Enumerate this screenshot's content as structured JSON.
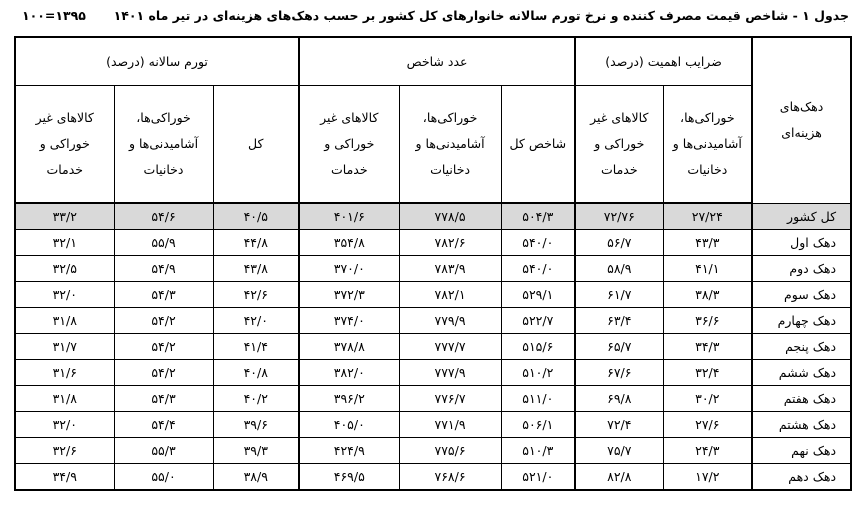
{
  "title": "جدول ۱ - شاخص قیمت مصرف کننده و نرخ تورم سالانه خانوارهای کل کشور بر حسب دهک‌های هزینه‌ای در تیر ماه ۱۴۰۱",
  "base_year": "۱۰۰=۱۳۹۵",
  "headers": {
    "row_label": "دهک‌های هزینه‌ای",
    "groups": [
      "ضرایب اهمیت (درصد)",
      "عدد شاخص",
      "تورم سالانه (درصد)"
    ],
    "sub": [
      "خوراکی‌ها، آشامیدنی‌ها و دخانیات",
      "کالاهای غیر خوراکی و خدمات",
      "شاخص کل",
      "خوراکی‌ها، آشامیدنی‌ها و دخانیات",
      "کالاهای غیر خوراکی و خدمات",
      "کل",
      "خوراکی‌ها، آشامیدنی‌ها و دخانیات",
      "کالاهای غیر خوراکی و خدمات"
    ]
  },
  "rows": [
    {
      "label": "کل کشور",
      "cells": [
        "۲۷/۲۴",
        "۷۲/۷۶",
        "۵۰۴/۳",
        "۷۷۸/۵",
        "۴۰۱/۶",
        "۴۰/۵",
        "۵۴/۶",
        "۳۳/۲"
      ]
    },
    {
      "label": "دهک اول",
      "cells": [
        "۴۳/۳",
        "۵۶/۷",
        "۵۴۰/۰",
        "۷۸۲/۶",
        "۳۵۴/۸",
        "۴۴/۸",
        "۵۵/۹",
        "۳۲/۱"
      ]
    },
    {
      "label": "دهک دوم",
      "cells": [
        "۴۱/۱",
        "۵۸/۹",
        "۵۴۰/۰",
        "۷۸۳/۹",
        "۳۷۰/۰",
        "۴۳/۸",
        "۵۴/۹",
        "۳۲/۵"
      ]
    },
    {
      "label": "دهک سوم",
      "cells": [
        "۳۸/۳",
        "۶۱/۷",
        "۵۲۹/۱",
        "۷۸۲/۱",
        "۳۷۲/۳",
        "۴۲/۶",
        "۵۴/۳",
        "۳۲/۰"
      ]
    },
    {
      "label": "دهک چهارم",
      "cells": [
        "۳۶/۶",
        "۶۳/۴",
        "۵۲۲/۷",
        "۷۷۹/۹",
        "۳۷۴/۰",
        "۴۲/۰",
        "۵۴/۲",
        "۳۱/۸"
      ]
    },
    {
      "label": "دهک پنجم",
      "cells": [
        "۳۴/۳",
        "۶۵/۷",
        "۵۱۵/۶",
        "۷۷۷/۷",
        "۳۷۸/۸",
        "۴۱/۴",
        "۵۴/۲",
        "۳۱/۷"
      ]
    },
    {
      "label": "دهک ششم",
      "cells": [
        "۳۲/۴",
        "۶۷/۶",
        "۵۱۰/۲",
        "۷۷۷/۹",
        "۳۸۲/۰",
        "۴۰/۸",
        "۵۴/۲",
        "۳۱/۶"
      ]
    },
    {
      "label": "دهک هفتم",
      "cells": [
        "۳۰/۲",
        "۶۹/۸",
        "۵۱۱/۰",
        "۷۷۶/۷",
        "۳۹۶/۲",
        "۴۰/۲",
        "۵۴/۳",
        "۳۱/۸"
      ]
    },
    {
      "label": "دهک هشتم",
      "cells": [
        "۲۷/۶",
        "۷۲/۴",
        "۵۰۶/۱",
        "۷۷۱/۹",
        "۴۰۵/۰",
        "۳۹/۶",
        "۵۴/۴",
        "۳۲/۰"
      ]
    },
    {
      "label": "دهک نهم",
      "cells": [
        "۲۴/۳",
        "۷۵/۷",
        "۵۱۰/۳",
        "۷۷۵/۶",
        "۴۲۴/۹",
        "۳۹/۳",
        "۵۵/۳",
        "۳۲/۶"
      ]
    },
    {
      "label": "دهک دهم",
      "cells": [
        "۱۷/۲",
        "۸۲/۸",
        "۵۲۱/۰",
        "۷۶۸/۶",
        "۴۶۹/۵",
        "۳۸/۹",
        "۵۵/۰",
        "۳۴/۹"
      ]
    }
  ]
}
